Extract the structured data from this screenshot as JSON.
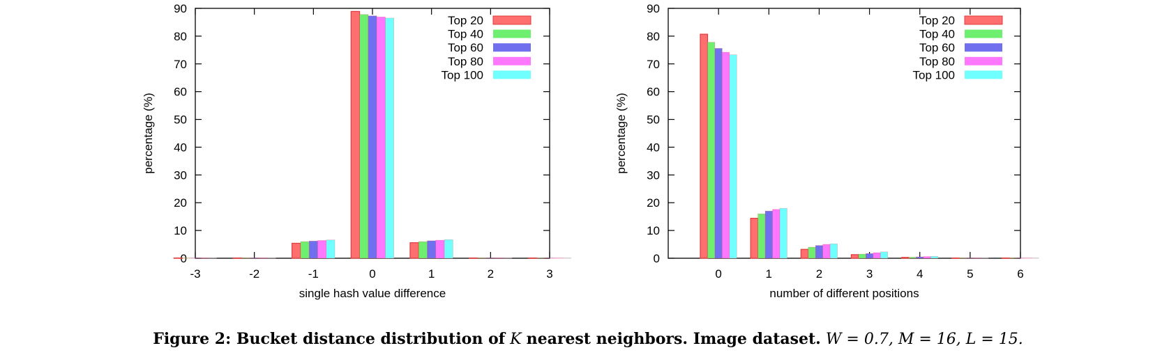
{
  "chart_data": [
    {
      "type": "bar",
      "categories": [
        "-3",
        "-2",
        "-1",
        "0",
        "1",
        "2",
        "3"
      ],
      "x": [
        -3,
        -2,
        -1,
        0,
        1,
        2,
        3
      ],
      "xlabel": "single hash value difference",
      "ylabel": "percentage (%)",
      "ylim": [
        0,
        90
      ],
      "yticks": [
        0,
        10,
        20,
        30,
        40,
        50,
        60,
        70,
        80,
        90
      ],
      "xticks": [
        "-3",
        "-2",
        "-1",
        "0",
        "1",
        "2",
        "3"
      ],
      "legend_position": "top-right",
      "grid": false,
      "series": [
        {
          "name": "Top 20",
          "color": "#ff6f6f",
          "values": [
            0.1,
            0.1,
            5.4,
            88.9,
            5.6,
            0.1,
            0.1
          ]
        },
        {
          "name": "Top 40",
          "color": "#6fef6f",
          "values": [
            0.1,
            0.1,
            6.0,
            87.8,
            6.0,
            0.1,
            0.1
          ]
        },
        {
          "name": "Top 60",
          "color": "#7070ef",
          "values": [
            0.1,
            0.1,
            6.2,
            87.3,
            6.3,
            0.1,
            0.1
          ]
        },
        {
          "name": "Top 80",
          "color": "#ff77ff",
          "values": [
            0.1,
            0.1,
            6.4,
            86.9,
            6.5,
            0.1,
            0.1
          ]
        },
        {
          "name": "Top 100",
          "color": "#70ffff",
          "values": [
            0.1,
            0.1,
            6.6,
            86.5,
            6.7,
            0.1,
            0.1
          ]
        }
      ]
    },
    {
      "type": "bar",
      "categories": [
        "0",
        "1",
        "2",
        "3",
        "4",
        "5",
        "6"
      ],
      "x": [
        0,
        1,
        2,
        3,
        4,
        5,
        6
      ],
      "xlabel": "number of different positions",
      "ylabel": "percentage (%)",
      "ylim": [
        0,
        90
      ],
      "xlim": [
        -1,
        6
      ],
      "yticks": [
        0,
        10,
        20,
        30,
        40,
        50,
        60,
        70,
        80,
        90
      ],
      "xticks": [
        "0",
        "1",
        "2",
        "3",
        "4",
        "5",
        "6"
      ],
      "legend_position": "top-right",
      "grid": false,
      "series": [
        {
          "name": "Top 20",
          "color": "#ff6f6f",
          "values": [
            80.7,
            14.4,
            3.2,
            1.3,
            0.3,
            0.1,
            0.1
          ]
        },
        {
          "name": "Top 40",
          "color": "#6fef6f",
          "values": [
            77.8,
            16.0,
            4.0,
            1.5,
            0.4,
            0.1,
            0.1
          ]
        },
        {
          "name": "Top 60",
          "color": "#7070ef",
          "values": [
            75.6,
            17.0,
            4.6,
            1.7,
            0.5,
            0.1,
            0.1
          ]
        },
        {
          "name": "Top 80",
          "color": "#ff77ff",
          "values": [
            74.2,
            17.6,
            5.0,
            2.0,
            0.6,
            0.1,
            0.1
          ]
        },
        {
          "name": "Top 100",
          "color": "#70ffff",
          "values": [
            73.3,
            18.0,
            5.2,
            2.3,
            0.7,
            0.1,
            0.1
          ]
        }
      ]
    }
  ],
  "caption": {
    "label": "Figure 2: Bucket distance distribution of",
    "k": "K",
    "middle": "nearest neighbors. Image dataset.",
    "params": "W = 0.7, M = 16, L = 15."
  }
}
